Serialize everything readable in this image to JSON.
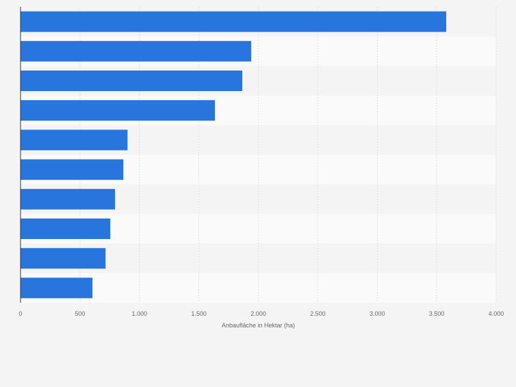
{
  "chart_data": {
    "type": "bar",
    "orientation": "horizontal",
    "categories": [
      "",
      "",
      "",
      "",
      "",
      "",
      "",
      "",
      "",
      ""
    ],
    "values": [
      3580,
      1940,
      1865,
      1635,
      900,
      865,
      795,
      755,
      715,
      605
    ],
    "title": "",
    "xlabel": "Anbaufläche in Hektar (ha)",
    "ylabel": "",
    "xlim": [
      0,
      4000
    ],
    "ticks": [
      0,
      500,
      1000,
      1500,
      2000,
      2500,
      3000,
      3500,
      4000
    ],
    "tick_labels": [
      "0",
      "500",
      "1.000",
      "1.500",
      "2.000",
      "2.500",
      "3.000",
      "3.500",
      "4.000"
    ],
    "grid": true,
    "bar_color": "#2876dd",
    "stripe_colors": [
      "#f4f4f4",
      "#fafafa"
    ]
  }
}
